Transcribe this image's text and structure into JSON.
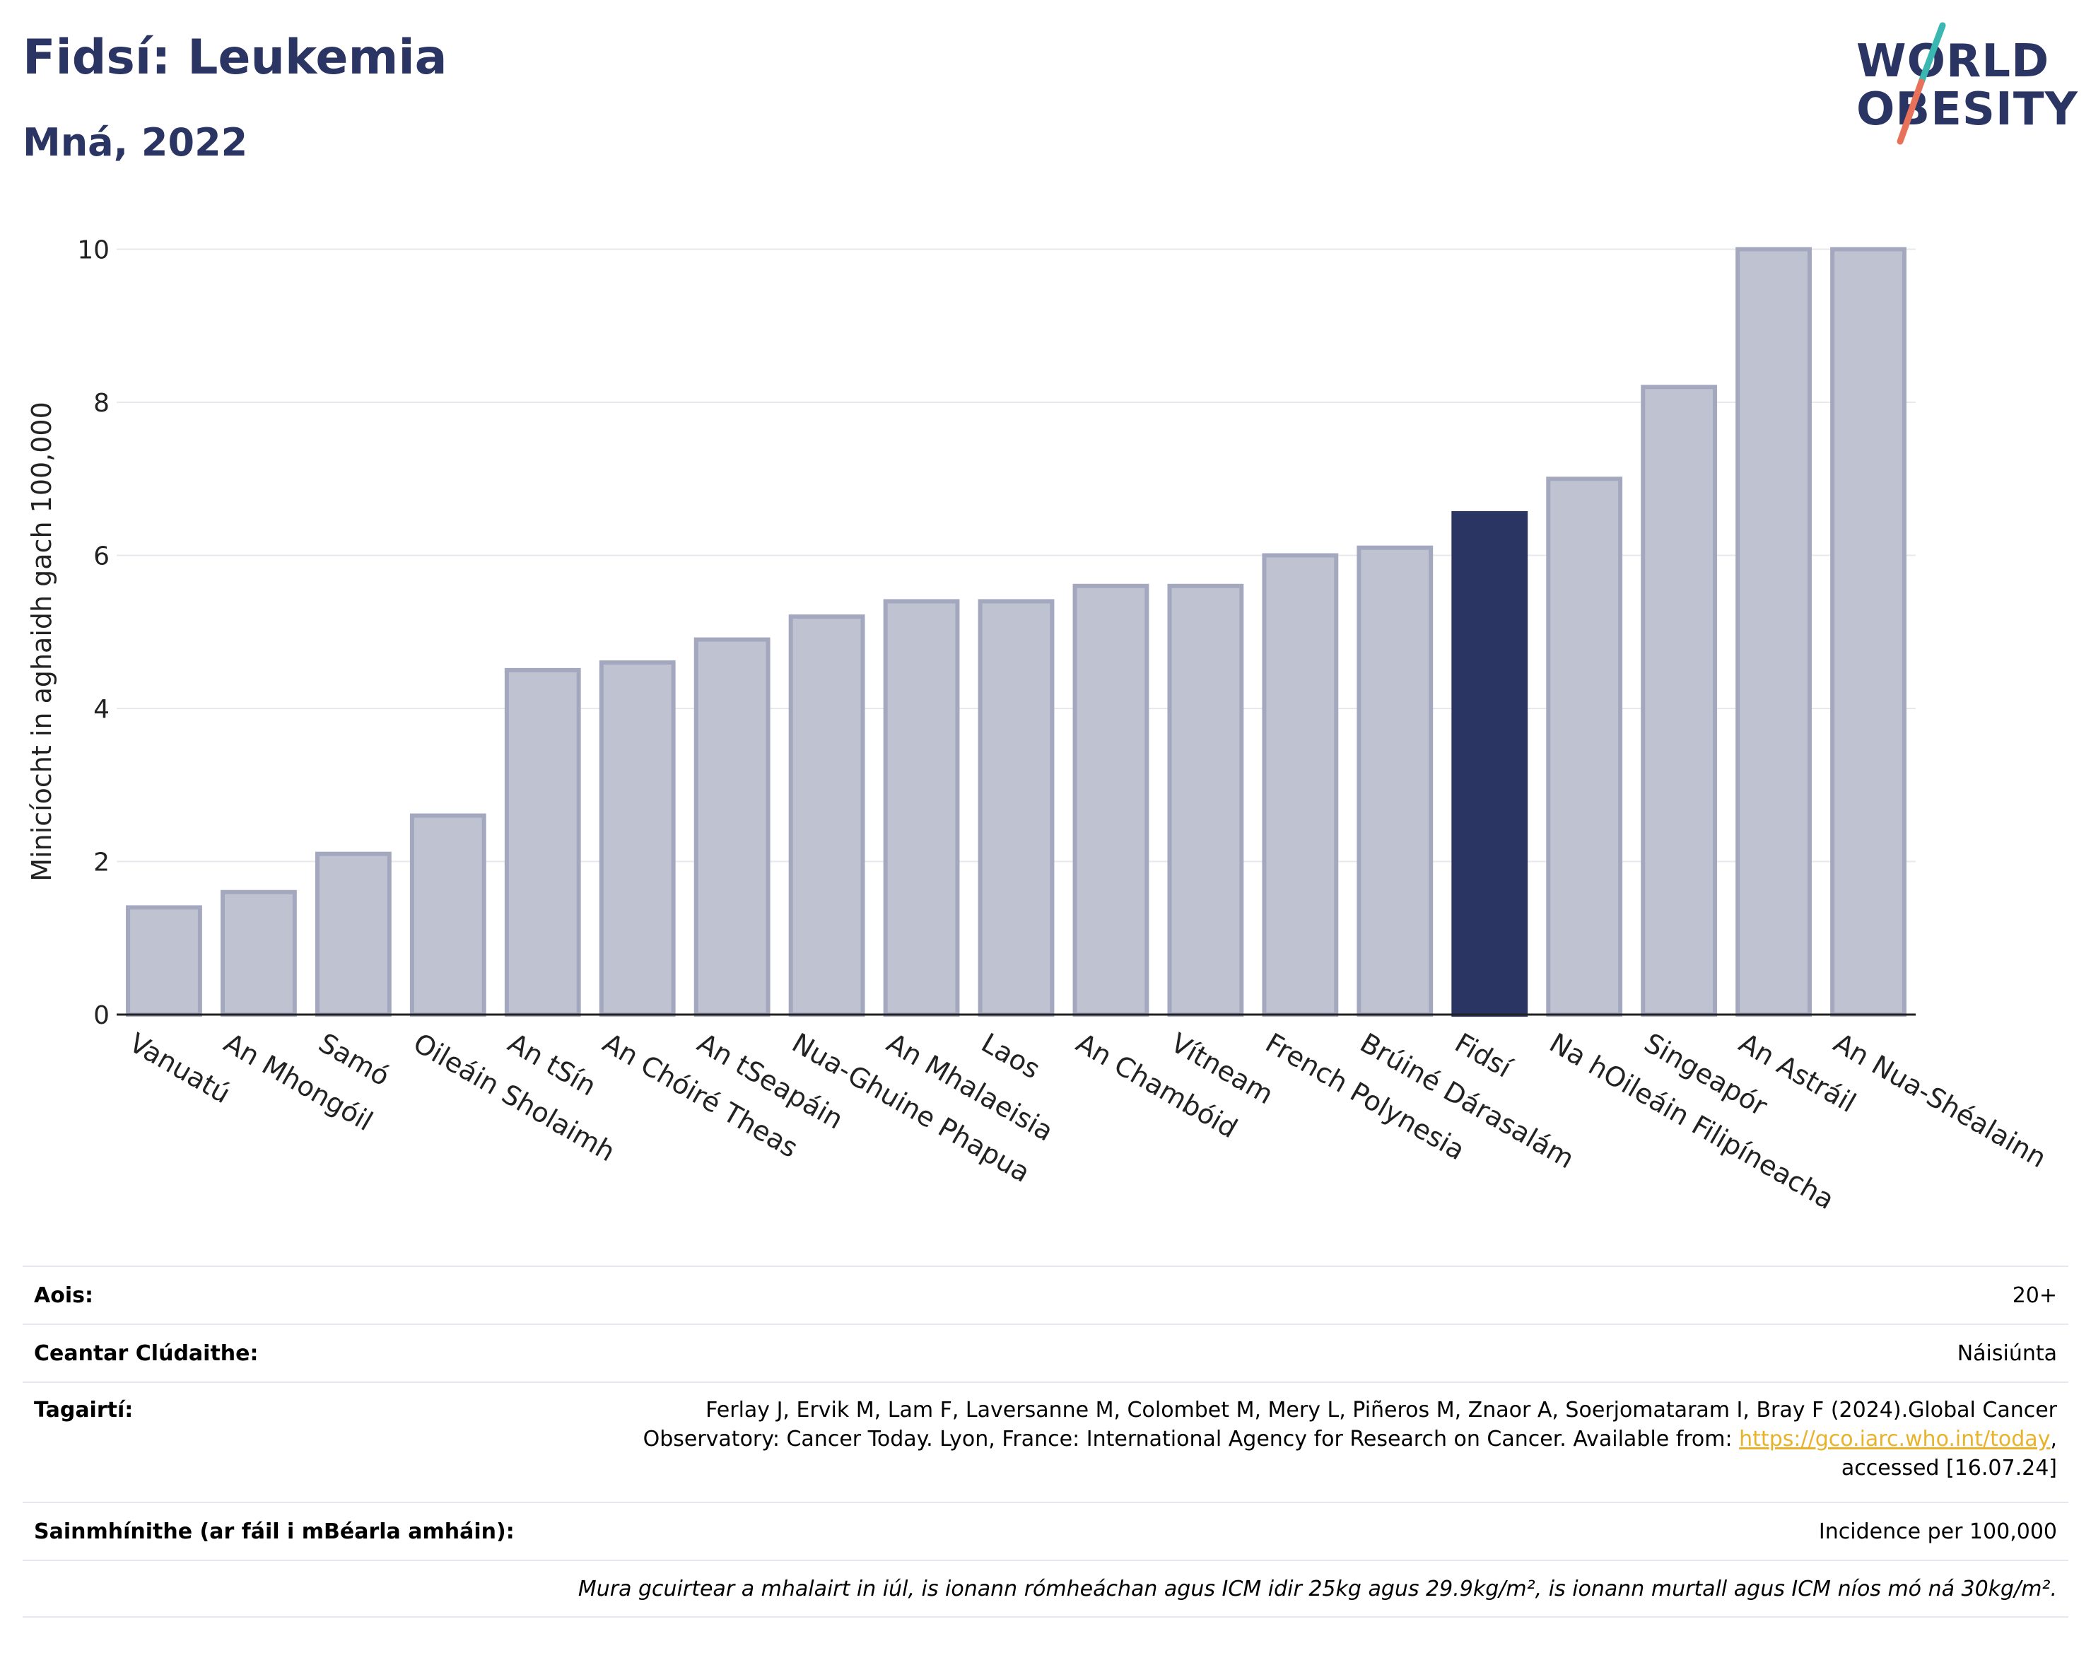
{
  "header": {
    "title": "Fidsí: Leukemia",
    "subtitle": "Mná, 2022"
  },
  "logo": {
    "line1": "WORLD",
    "line2": "OBESITY"
  },
  "colors": {
    "bar": "#bfc2d1",
    "bar_border": "#a3a8be",
    "highlight": "#2a3563",
    "grid": "#e6e8ee",
    "logo_slash_top": "#3ab7b0",
    "logo_slash_bottom": "#e8715a"
  },
  "chart_data": {
    "type": "bar",
    "title": "Fidsí: Leukemia",
    "subtitle": "Mná, 2022",
    "xlabel": "",
    "ylabel": "Minicíocht in aghaidh gach 100,000",
    "ylim": [
      0,
      10.3
    ],
    "yticks": [
      0,
      2,
      4,
      6,
      8,
      10
    ],
    "grid": true,
    "highlight": "Fidsí",
    "categories": [
      "Vanuatú",
      "An Mhongóil",
      "Samó",
      "Oileáin Sholaimh",
      "An tSín",
      "An Chóiré Theas",
      "An tSeapáin",
      "Nua-Ghuine Phapua",
      "An Mhalaeisia",
      "Laos",
      "An Chambóid",
      "Vítneam",
      "French Polynesia",
      "Brúiné Dárasalám",
      "Fidsí",
      "Na hOileáin Filipíneacha",
      "Singeapór",
      "An Astráil",
      "An Nua-Shéalainn"
    ],
    "values": [
      1.4,
      1.6,
      2.1,
      2.6,
      4.5,
      4.6,
      4.9,
      5.2,
      5.4,
      5.4,
      5.6,
      5.6,
      6.0,
      6.1,
      6.55,
      7.0,
      8.2,
      10.0,
      10.0
    ]
  },
  "info": {
    "age_label": "Aois:",
    "age_value": "20+",
    "coverage_label": "Ceantar Clúdaithe:",
    "coverage_value": "Náisiúnta",
    "refs_label": "Tagairtí:",
    "refs_line1": "Ferlay J, Ervik M, Lam F, Laversanne M, Colombet M, Mery L, Piñeros M, Znaor A, Soerjomataram I, Bray F (2024).Global Cancer",
    "refs_line2_pre": "Observatory: Cancer Today. Lyon, France: International Agency for Research on Cancer. Available from: ",
    "refs_link": "https://gco.iarc.who.int/today",
    "refs_line2_post": ",",
    "refs_line3": "accessed [16.07.24]",
    "defs_label": "Sainmhínithe (ar fáil i mBéarla amháin):",
    "defs_value": "Incidence per 100,000",
    "footnote": "Mura gcuirtear a mhalairt in iúl, is ionann rómheáchan agus ICM idir 25kg agus 29.9kg/m², is ionann murtall agus ICM níos mó ná 30kg/m²."
  }
}
